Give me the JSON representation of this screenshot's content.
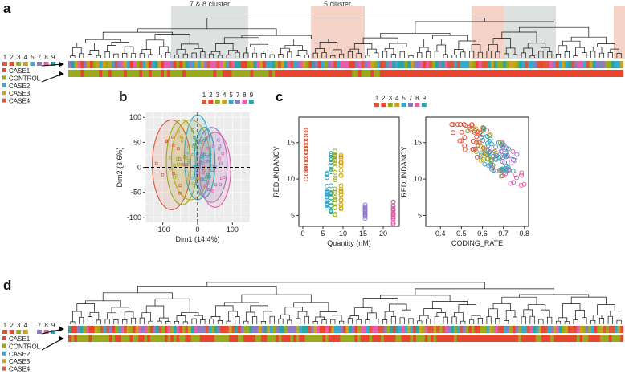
{
  "panels": {
    "a": {
      "letter": "a",
      "cluster_labels": [
        "7 & 8 cluster",
        "5 cluster"
      ]
    },
    "b": {
      "letter": "b"
    },
    "c": {
      "letter": "c"
    },
    "d": {
      "letter": "d"
    }
  },
  "legend": {
    "numbers_a": [
      "1",
      "2",
      "3",
      "4",
      "5",
      "7",
      "8",
      "9"
    ],
    "numbers_d": [
      "1",
      "2",
      "3",
      "4",
      "",
      "7",
      "8",
      "9"
    ],
    "groups": [
      {
        "label": "CASE1",
        "color": "#e8452f"
      },
      {
        "label": "CONTROL",
        "color": "#9aaa1c"
      },
      {
        "label": "CASE2",
        "color": "#3aa8c8"
      },
      {
        "label": "CASE3",
        "color": "#c9a21f"
      },
      {
        "label": "CASE4",
        "color": "#d9573a"
      }
    ]
  },
  "palette": {
    "1": "#d9573a",
    "2": "#e8452f",
    "3": "#9aaa1c",
    "4": "#c9a21f",
    "5": "#3aa8c8",
    "7": "#8e7cc3",
    "8": "#e55ea8",
    "9": "#2aa3a3"
  },
  "chart_data": [
    {
      "id": "b",
      "type": "scatter",
      "title": "",
      "xlabel": "Dim1 (14.4%)",
      "ylabel": "Dim2 (3.6%)",
      "xlim": [
        -150,
        150
      ],
      "ylim": [
        -110,
        110
      ],
      "xticks": [
        "-100",
        "0",
        "100"
      ],
      "yticks": [
        "100",
        "50",
        "0",
        "-50",
        "-100"
      ],
      "legend_numbers": [
        "1",
        "2",
        "3",
        "4",
        "5",
        "7",
        "8",
        "9"
      ],
      "ellipses": [
        {
          "group": "1",
          "cx": -75,
          "cy": 5,
          "rx": 55,
          "ry": 90
        },
        {
          "group": "3",
          "cx": -45,
          "cy": 10,
          "rx": 45,
          "ry": 85
        },
        {
          "group": "4",
          "cx": -20,
          "cy": 15,
          "rx": 55,
          "ry": 80
        },
        {
          "group": "5",
          "cx": 0,
          "cy": 20,
          "rx": 38,
          "ry": 85
        },
        {
          "group": "7",
          "cx": 40,
          "cy": 5,
          "rx": 45,
          "ry": 75
        },
        {
          "group": "8",
          "cx": 50,
          "cy": -5,
          "rx": 45,
          "ry": 75
        },
        {
          "group": "9",
          "cx": 20,
          "cy": 10,
          "rx": 30,
          "ry": 70
        }
      ]
    },
    {
      "id": "c-left",
      "type": "scatter",
      "xlabel": "Quantity (nM)",
      "ylabel": "REDUNDANCY",
      "xlim": [
        -1,
        24
      ],
      "ylim": [
        3.5,
        18.5
      ],
      "xticks": [
        "0",
        "5",
        "10",
        "15",
        "20"
      ],
      "yticks": [
        "5",
        "10",
        "15"
      ],
      "legend_numbers": [
        "1",
        "2",
        "3",
        "4",
        "5",
        "7",
        "8",
        "9"
      ],
      "series": [
        {
          "group": "1",
          "x": 0.8,
          "y_min": 10,
          "y_max": 17.5
        },
        {
          "group": "5",
          "x": 6,
          "y_min": 6,
          "y_max": 11
        },
        {
          "group": "9",
          "x": 7,
          "y_min": 5,
          "y_max": 14
        },
        {
          "group": "3",
          "x": 8,
          "y_min": 4.5,
          "y_max": 14.5
        },
        {
          "group": "4",
          "x": 9.5,
          "y_min": 5.5,
          "y_max": 13.5
        },
        {
          "group": "7",
          "x": 15.5,
          "y_min": 4.5,
          "y_max": 6.5
        },
        {
          "group": "8",
          "x": 22.5,
          "y_min": 3.8,
          "y_max": 7
        }
      ]
    },
    {
      "id": "c-right",
      "type": "scatter",
      "xlabel": "CODING_RATE",
      "ylabel": "REDUNDANCY",
      "xlim": [
        0.33,
        0.82
      ],
      "ylim": [
        3.5,
        18.5
      ],
      "xticks": [
        "0.4",
        "0.5",
        "0.6",
        "0.7",
        "0.8"
      ],
      "yticks": [
        "5",
        "10",
        "15"
      ],
      "trend": "decreasing"
    }
  ]
}
